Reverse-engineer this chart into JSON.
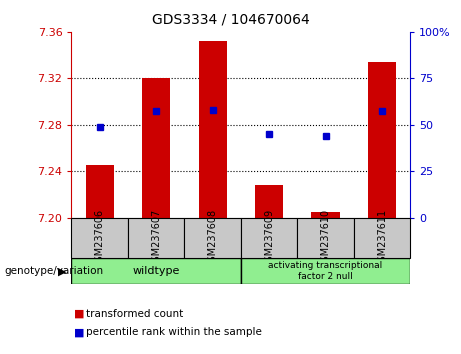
{
  "title": "GDS3334 / 104670064",
  "samples": [
    "GSM237606",
    "GSM237607",
    "GSM237608",
    "GSM237609",
    "GSM237610",
    "GSM237611"
  ],
  "red_values": [
    7.245,
    7.32,
    7.352,
    7.228,
    7.205,
    7.334
  ],
  "blue_values": [
    7.278,
    7.292,
    7.293,
    7.272,
    7.27,
    7.292
  ],
  "ylim_left": [
    7.2,
    7.36
  ],
  "ylim_right": [
    0,
    100
  ],
  "yticks_left": [
    7.2,
    7.24,
    7.28,
    7.32,
    7.36
  ],
  "yticks_right": [
    0,
    25,
    50,
    75,
    100
  ],
  "ytick_labels_right": [
    "0",
    "25",
    "50",
    "75",
    "100%"
  ],
  "red_color": "#cc0000",
  "blue_color": "#0000cc",
  "bar_width": 0.5,
  "tick_box_color": "#c8c8c8",
  "group_box_color": "#90EE90",
  "background_color": "#ffffff"
}
